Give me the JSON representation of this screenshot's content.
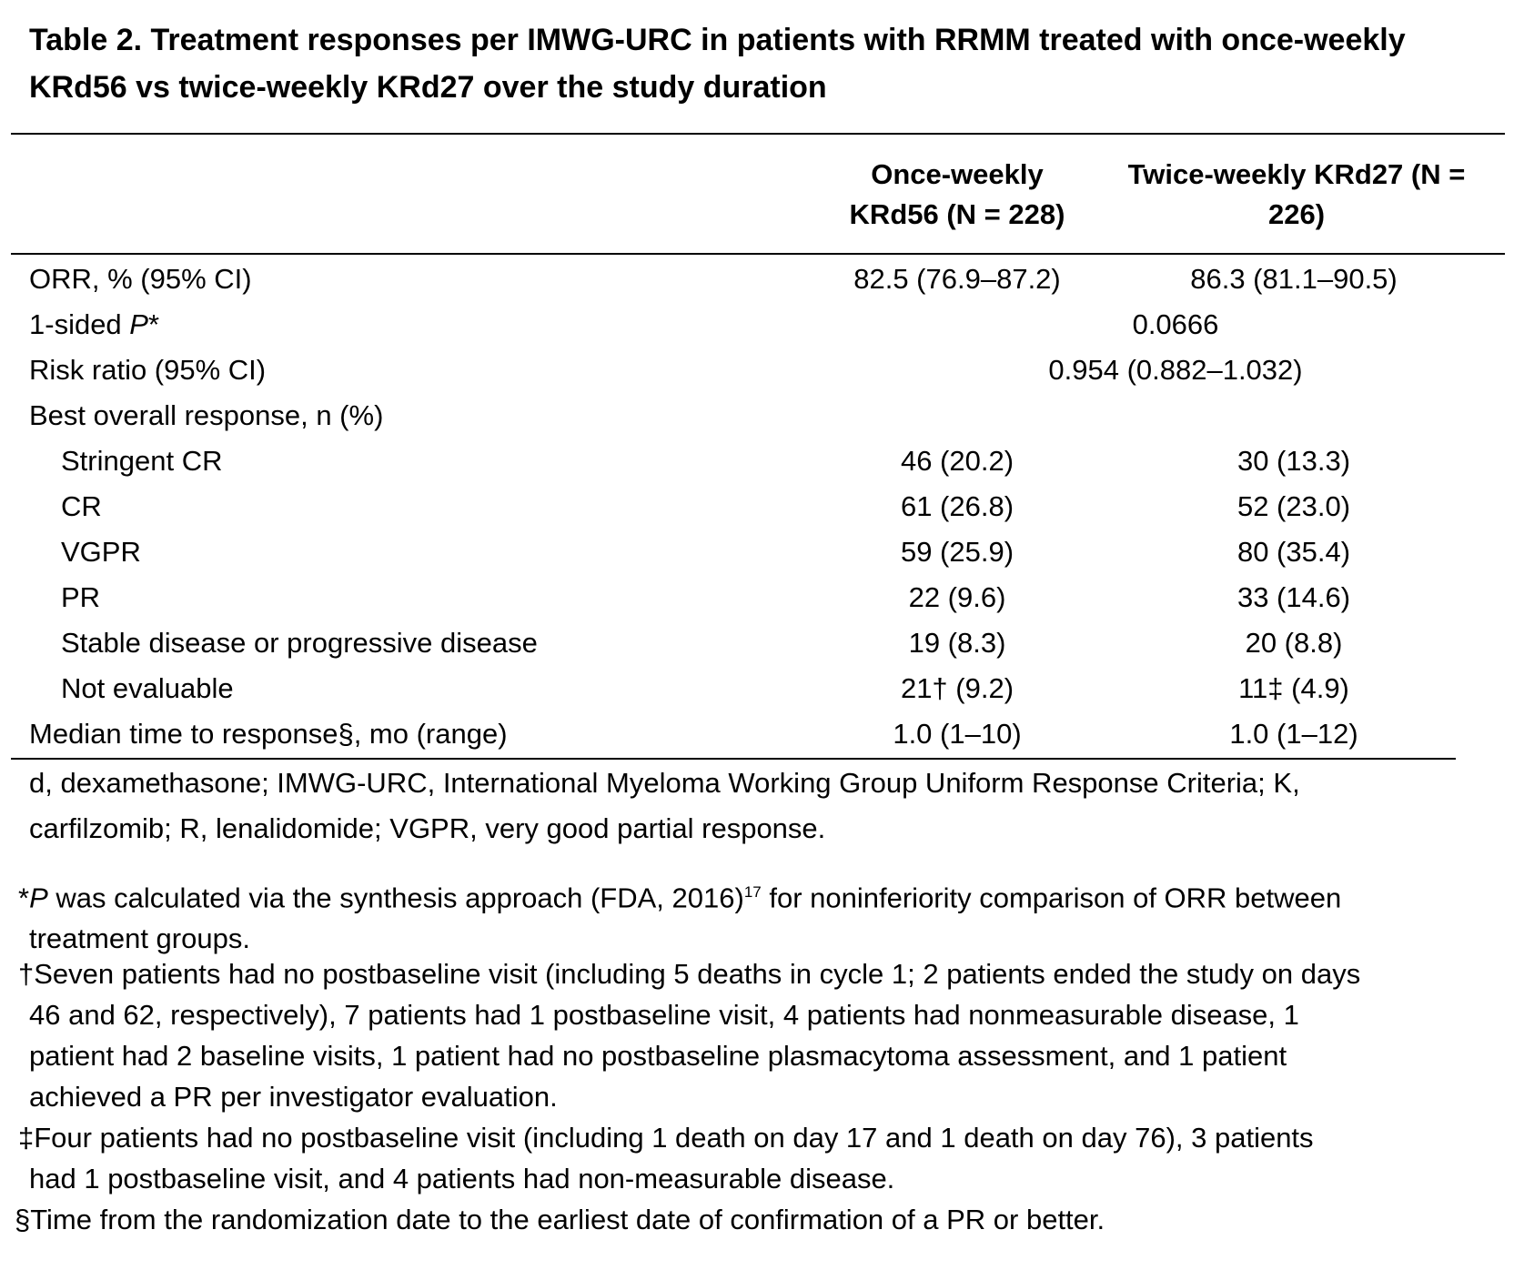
{
  "title": {
    "line1": "Table 2. Treatment responses per IMWG-URC in patients with RRMM treated with once-weekly",
    "line2": "KRd56 vs twice-weekly KRd27 over the study duration"
  },
  "header": {
    "col1_line1": "Once-weekly",
    "col1_line2": "KRd56 (N = 228)",
    "col2_line1": "Twice-weekly KRd27 (N =",
    "col2_line2": "226)"
  },
  "rows": [
    {
      "label": "ORR, % (95% CI)",
      "v1": "82.5 (76.9–87.2)",
      "v2": "86.3 (81.1–90.5)"
    },
    {
      "label_prefix": "1-sided ",
      "label_italic": "P",
      "label_suffix": "*",
      "span": "0.0666"
    },
    {
      "label": "Risk ratio (95% CI)",
      "span": "0.954 (0.882–1.032)"
    },
    {
      "label": "Best overall response, n (%)"
    },
    {
      "label": "Stringent CR",
      "v1": "46 (20.2)",
      "v2": "30 (13.3)"
    },
    {
      "label": "CR",
      "v1": "61 (26.8)",
      "v2": "52 (23.0)"
    },
    {
      "label": "VGPR",
      "v1": "59 (25.9)",
      "v2": "80 (35.4)"
    },
    {
      "label": "PR",
      "v1": "22 (9.6)",
      "v2": "33 (14.6)"
    },
    {
      "label": "Stable disease or progressive disease",
      "v1": "19 (8.3)",
      "v2": "20 (8.8)"
    },
    {
      "label": "Not evaluable",
      "v1": "21† (9.2)",
      "v2": "11‡ (4.9)"
    },
    {
      "label": "Median time to response§, mo (range)",
      "v1": "1.0 (1–10)",
      "v2": "1.0 (1–12)"
    }
  ],
  "abbreviations": {
    "line1": "d, dexamethasone; IMWG-URC, International Myeloma Working Group Uniform Response Criteria; K,",
    "line2": "carfilzomib; R, lenalidomide; VGPR, very good partial response."
  },
  "footnotes": {
    "f1_mark": "*",
    "f1_italic": "P",
    "f1_text": " was calculated via the synthesis approach (FDA, 2016)",
    "f1_sup": "17",
    "f1_text2": " for noninferiority comparison of ORR between",
    "f1_line2": "treatment groups.",
    "f2_line1": "†Seven patients had no postbaseline visit (including 5 deaths in cycle 1; 2 patients ended the study on days",
    "f2_line2": "46 and 62, respectively), 7 patients had 1 postbaseline visit, 4 patients had nonmeasurable disease, 1",
    "f2_line3": "patient had 2 baseline visits, 1 patient had no postbaseline plasmacytoma assessment, and 1 patient",
    "f2_line4": "achieved a PR per investigator evaluation.",
    "f3_line1": "‡Four patients had no postbaseline visit (including 1 death on day 17 and 1 death on day 76), 3 patients",
    "f3_line2": "had 1 postbaseline visit, and 4 patients had non-measurable disease.",
    "f4_line1": "§Time from the randomization date to the earliest date of confirmation of a PR or better."
  }
}
